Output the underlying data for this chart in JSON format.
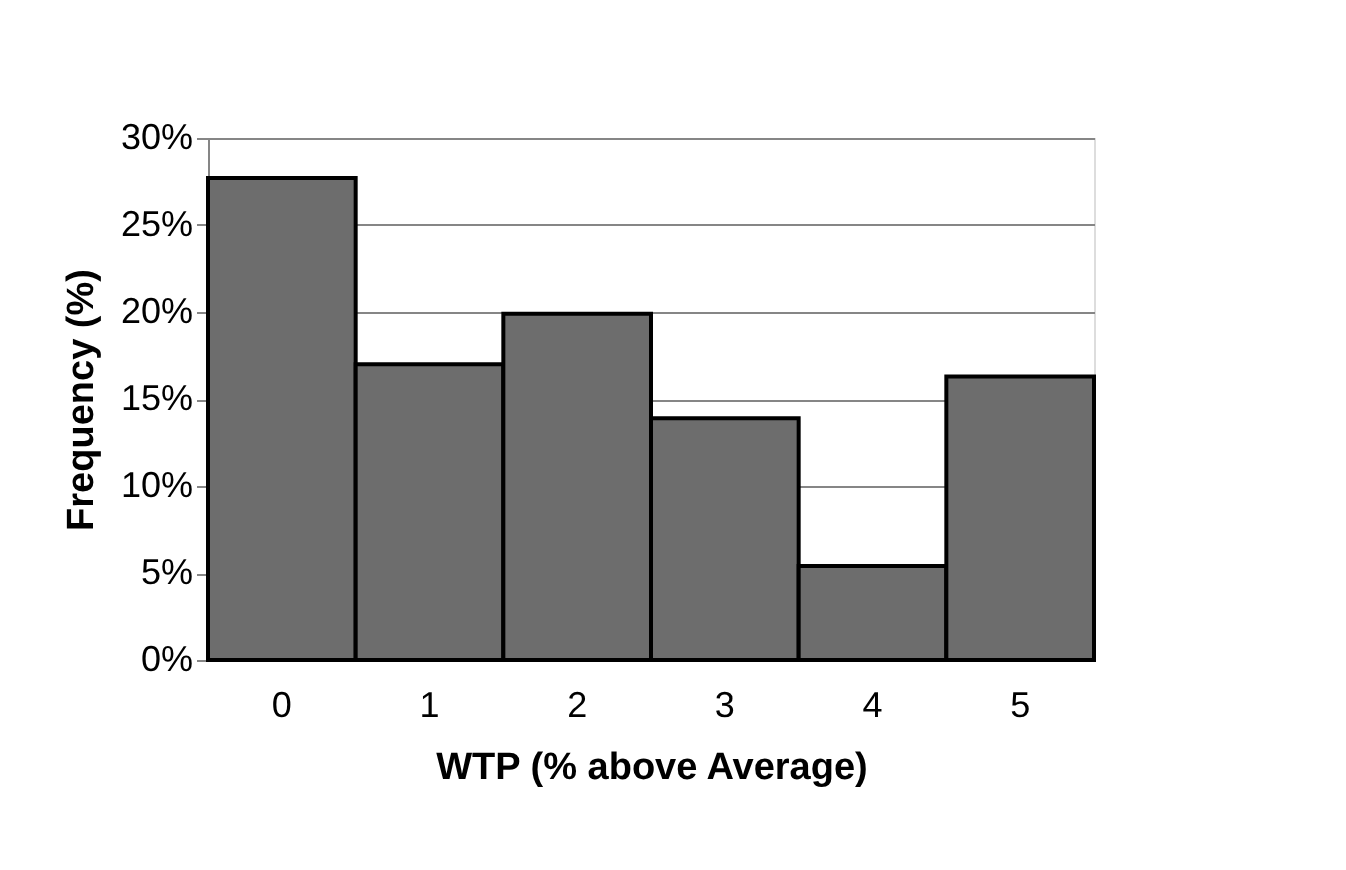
{
  "chart_data": {
    "type": "bar",
    "xlabel": "WTP (% above Average)",
    "ylabel": "Frequency (%)",
    "categories": [
      "0",
      "1",
      "2",
      "3",
      "4",
      "5"
    ],
    "values": [
      27.7,
      17.0,
      19.9,
      13.9,
      5.4,
      16.3
    ],
    "color": "#6d6d6d",
    "ylim": [
      0,
      30
    ],
    "yticks": [
      {
        "value": 0,
        "label": "0%"
      },
      {
        "value": 5,
        "label": "5%"
      },
      {
        "value": 10,
        "label": "10%"
      },
      {
        "value": 15,
        "label": "15%"
      },
      {
        "value": 20,
        "label": "20%"
      },
      {
        "value": 25,
        "label": "25%"
      },
      {
        "value": 30,
        "label": "30%"
      }
    ],
    "grid": "y",
    "legend": false
  }
}
